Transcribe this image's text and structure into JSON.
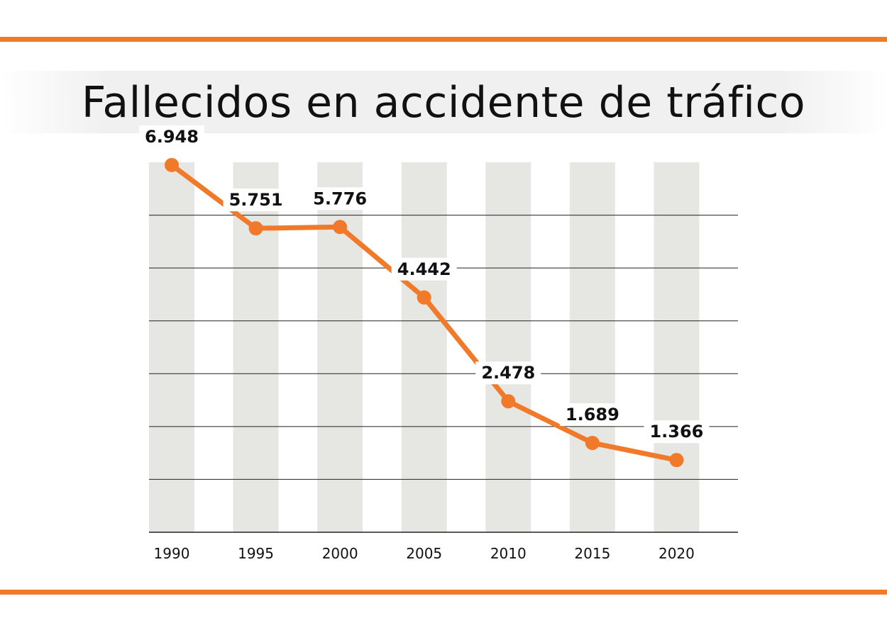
{
  "title": "Fallecidos en accidente de tráfico",
  "colors": {
    "accent": "#f07a2a",
    "column_band": "#e6e6e2",
    "gridline": "#222222",
    "text": "#111111"
  },
  "chart_data": {
    "type": "line",
    "title": "Fallecidos en accidente de tráfico",
    "xlabel": "",
    "ylabel": "",
    "categories": [
      "1990",
      "1995",
      "2000",
      "2005",
      "2010",
      "2015",
      "2020"
    ],
    "values": [
      6948,
      5751,
      5776,
      4442,
      2478,
      1689,
      1366
    ],
    "data_labels": [
      "6.948",
      "5.751",
      "5.776",
      "4.442",
      "2.478",
      "1.689",
      "1.366"
    ],
    "ylim": [
      0,
      7000
    ],
    "grid": true,
    "gridline_values": [
      0,
      1000,
      2000,
      3000,
      4000,
      5000,
      6000,
      7000
    ],
    "legend": "none"
  }
}
